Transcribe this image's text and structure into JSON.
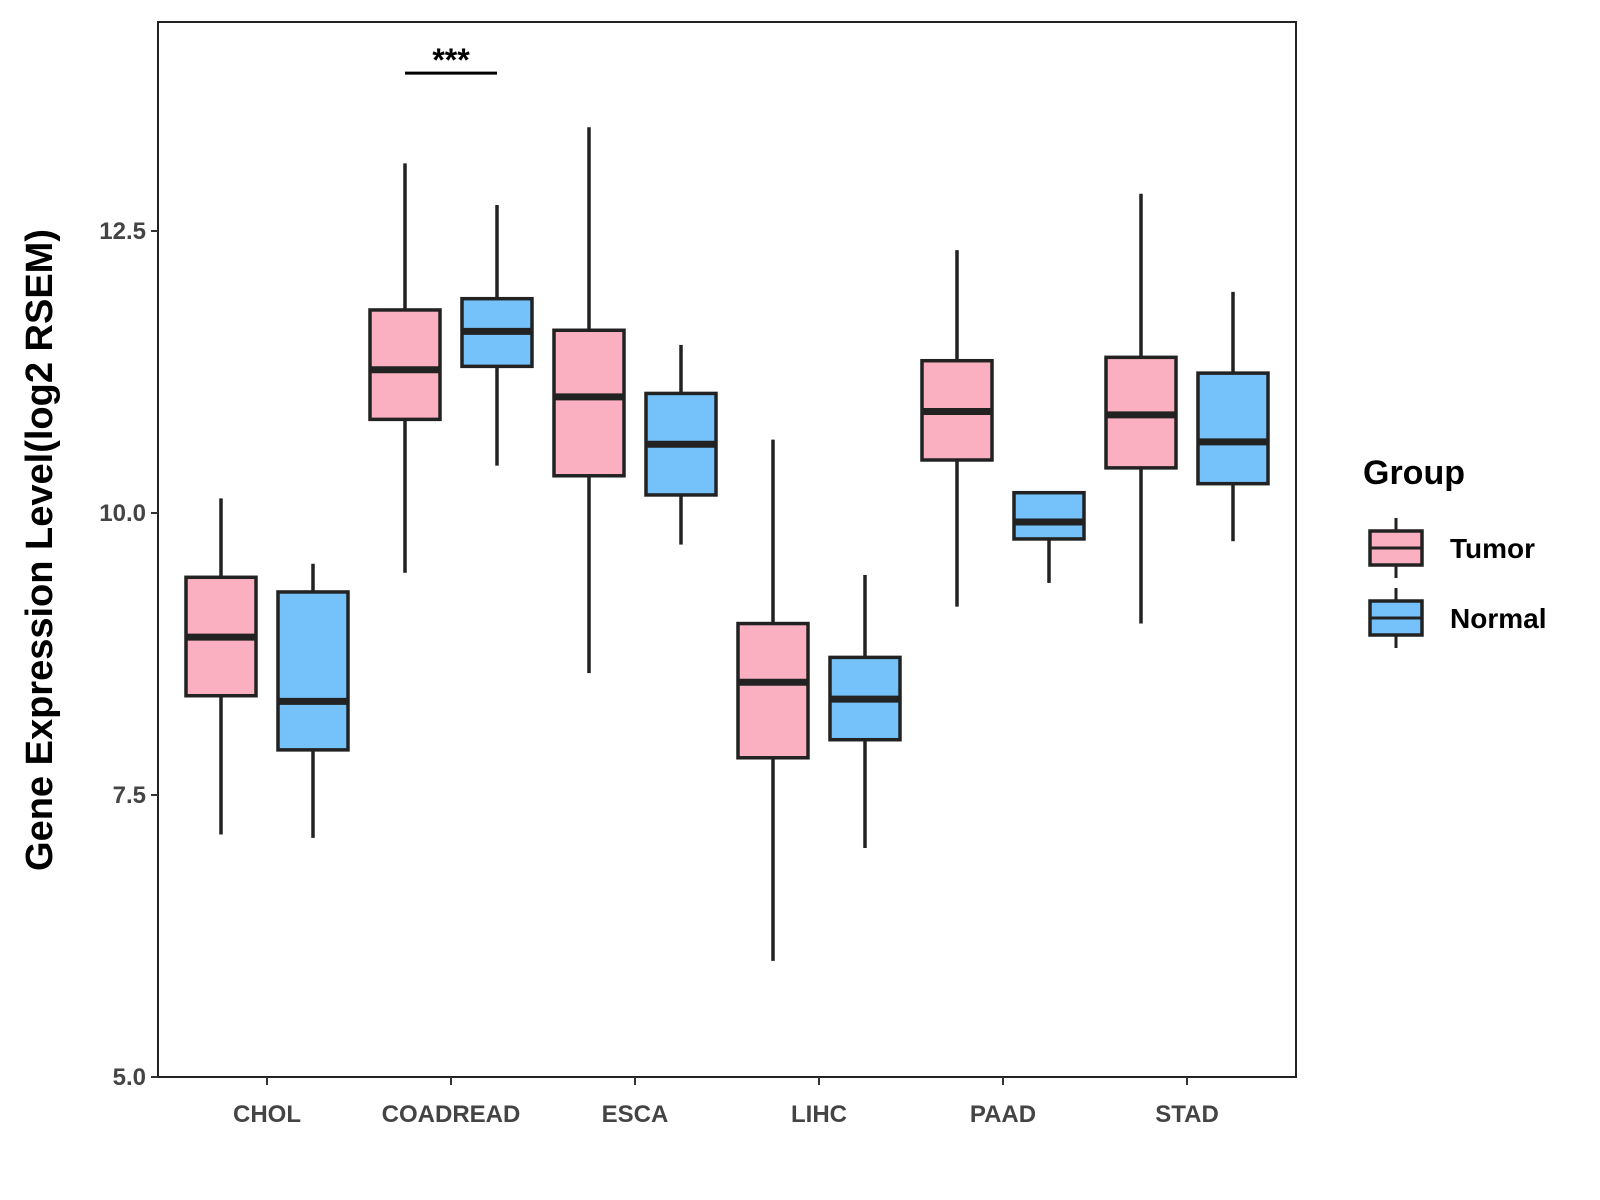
{
  "chart_data": {
    "type": "boxplot",
    "title": "",
    "xlabel": "",
    "ylabel": "Gene Expression Level(log2 RSEM)",
    "ylim": [
      5.0,
      14.5
    ],
    "yticks": [
      "5.0",
      "7.5",
      "10.0",
      "12.5"
    ],
    "ytick_values": [
      5.0,
      7.5,
      10.0,
      12.5
    ],
    "grid": false,
    "legend_position": "right",
    "legend_title": "Group",
    "categories": [
      "CHOL",
      "COADREAD",
      "ESCA",
      "LIHC",
      "PAAD",
      "STAD"
    ],
    "series": [
      {
        "name": "Tumor",
        "color": "#fbb0c1",
        "boxes": [
          {
            "min": 7.15,
            "q1": 8.38,
            "median": 8.9,
            "q3": 9.43,
            "max": 10.13
          },
          {
            "min": 9.47,
            "q1": 10.83,
            "median": 11.27,
            "q3": 11.8,
            "max": 13.1
          },
          {
            "min": 8.58,
            "q1": 10.33,
            "median": 11.03,
            "q3": 11.62,
            "max": 13.42
          },
          {
            "min": 6.03,
            "q1": 7.83,
            "median": 8.5,
            "q3": 9.02,
            "max": 10.65
          },
          {
            "min": 9.17,
            "q1": 10.47,
            "median": 10.9,
            "q3": 11.35,
            "max": 12.33
          },
          {
            "min": 9.02,
            "q1": 10.4,
            "median": 10.87,
            "q3": 11.38,
            "max": 12.83
          }
        ]
      },
      {
        "name": "Normal",
        "color": "#75c1f9",
        "boxes": [
          {
            "min": 7.12,
            "q1": 7.9,
            "median": 8.33,
            "q3": 9.3,
            "max": 9.55
          },
          {
            "min": 10.42,
            "q1": 11.3,
            "median": 11.61,
            "q3": 11.9,
            "max": 12.73
          },
          {
            "min": 9.72,
            "q1": 10.16,
            "median": 10.61,
            "q3": 11.06,
            "max": 11.49
          },
          {
            "min": 7.03,
            "q1": 7.99,
            "median": 8.35,
            "q3": 8.72,
            "max": 9.45
          },
          {
            "min": 9.38,
            "q1": 9.77,
            "median": 9.92,
            "q3": 10.18,
            "max": 10.18
          },
          {
            "min": 9.75,
            "q1": 10.26,
            "median": 10.63,
            "q3": 11.24,
            "max": 11.96
          }
        ]
      }
    ],
    "annotations": [
      {
        "category": "COADREAD",
        "label": "***",
        "y": 13.9
      }
    ]
  }
}
